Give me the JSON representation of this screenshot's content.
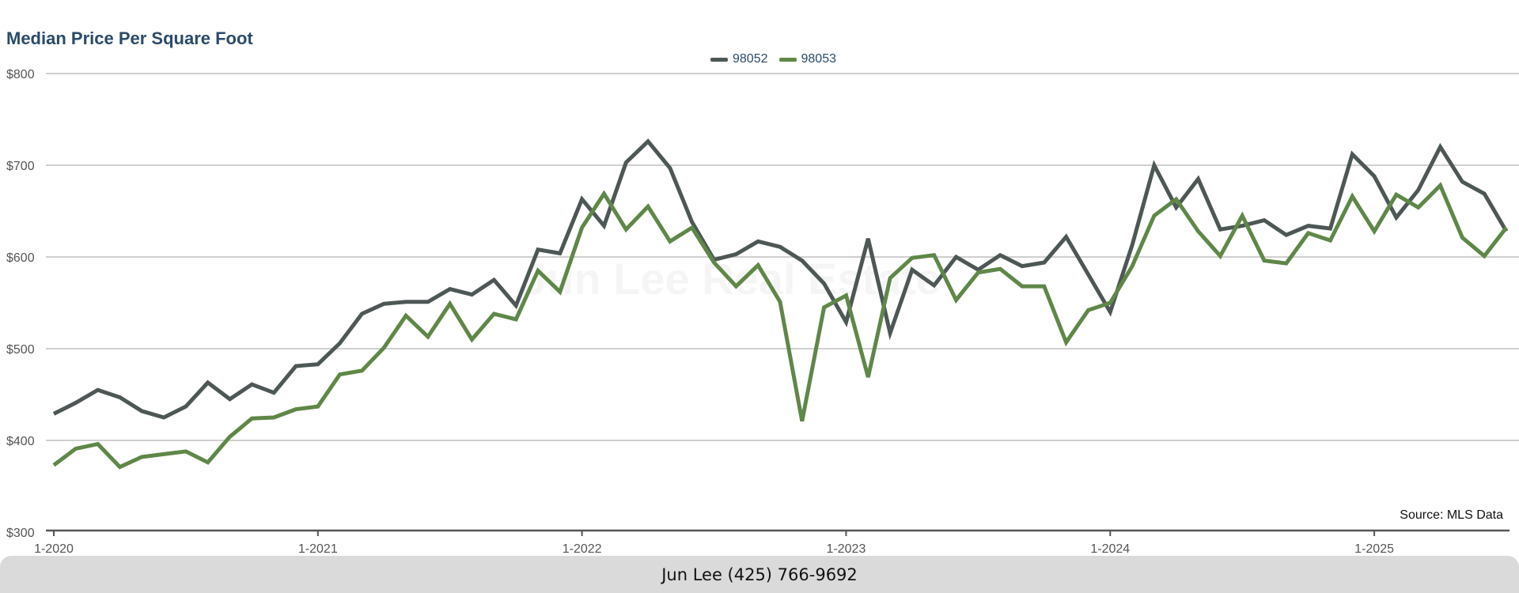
{
  "chart_data": {
    "type": "line",
    "title": "Median Price Per Square Foot",
    "xlabel": "",
    "ylabel": "",
    "ylim": [
      300,
      800
    ],
    "yticks": [
      "$800",
      "$700",
      "$600",
      "$500",
      "$400",
      "$300"
    ],
    "ytick_values": [
      800,
      700,
      600,
      500,
      400,
      300
    ],
    "xticks": [
      "1-2020",
      "1-2021",
      "1-2022",
      "1-2023",
      "1-2024",
      "1-2025"
    ],
    "xtick_index": [
      0,
      12,
      24,
      36,
      48,
      60
    ],
    "grid": true,
    "legend_position": "top-center",
    "source": "Source: MLS Data",
    "watermark": "Jun Lee Real Estate",
    "series": [
      {
        "name": "98052",
        "color": "#4d5756",
        "values": [
          429,
          441,
          455,
          447,
          432,
          425,
          437,
          463,
          445,
          461,
          452,
          481,
          483,
          506,
          538,
          549,
          551,
          551,
          565,
          559,
          575,
          547,
          608,
          604,
          663,
          634,
          703,
          726,
          697,
          638,
          597,
          603,
          617,
          611,
          596,
          571,
          529,
          620,
          517,
          586,
          569,
          600,
          586,
          602,
          590,
          594,
          622,
          581,
          540,
          613,
          700,
          654,
          685,
          630,
          634,
          640,
          624,
          634,
          631,
          712,
          688,
          643,
          673,
          720,
          682,
          669,
          628
        ]
      },
      {
        "name": "98053",
        "color": "#5f8747",
        "values": [
          373,
          391,
          396,
          371,
          382,
          385,
          388,
          376,
          404,
          424,
          425,
          434,
          437,
          472,
          476,
          501,
          536,
          513,
          549,
          510,
          538,
          532,
          585,
          562,
          632,
          669,
          630,
          655,
          617,
          632,
          594,
          568,
          591,
          551,
          421,
          545,
          558,
          469,
          577,
          599,
          602,
          553,
          583,
          587,
          568,
          568,
          507,
          542,
          550,
          590,
          645,
          663,
          628,
          601,
          645,
          596,
          593,
          626,
          618,
          666,
          628,
          668,
          654,
          678,
          621,
          601,
          632
        ]
      }
    ]
  },
  "footer": {
    "contact": "Jun Lee (425) 766-9692"
  }
}
